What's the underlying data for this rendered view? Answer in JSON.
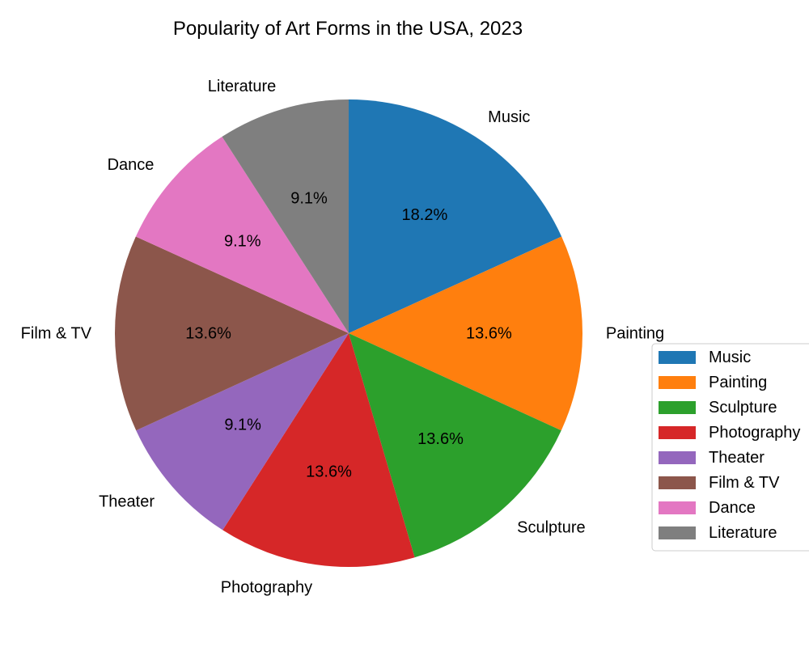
{
  "chart_data": {
    "type": "pie",
    "title": "Popularity of Art Forms in the USA, 2023",
    "start_angle_deg": 90,
    "direction": "clockwise",
    "legend_position": "right",
    "slices": [
      {
        "label": "Music",
        "percent_label": "18.2%",
        "value": 18.2,
        "color": "#1f77b4"
      },
      {
        "label": "Painting",
        "percent_label": "13.6%",
        "value": 13.6,
        "color": "#ff7f0e"
      },
      {
        "label": "Sculpture",
        "percent_label": "13.6%",
        "value": 13.6,
        "color": "#2ca02c"
      },
      {
        "label": "Photography",
        "percent_label": "13.6%",
        "value": 13.6,
        "color": "#d62728"
      },
      {
        "label": "Theater",
        "percent_label": "9.1%",
        "value": 9.1,
        "color": "#9467bd"
      },
      {
        "label": "Film & TV",
        "percent_label": "13.6%",
        "value": 13.6,
        "color": "#8c564b"
      },
      {
        "label": "Dance",
        "percent_label": "9.1%",
        "value": 9.1,
        "color": "#e377c2"
      },
      {
        "label": "Literature",
        "percent_label": "9.1%",
        "value": 9.1,
        "color": "#7f7f7f"
      }
    ]
  }
}
